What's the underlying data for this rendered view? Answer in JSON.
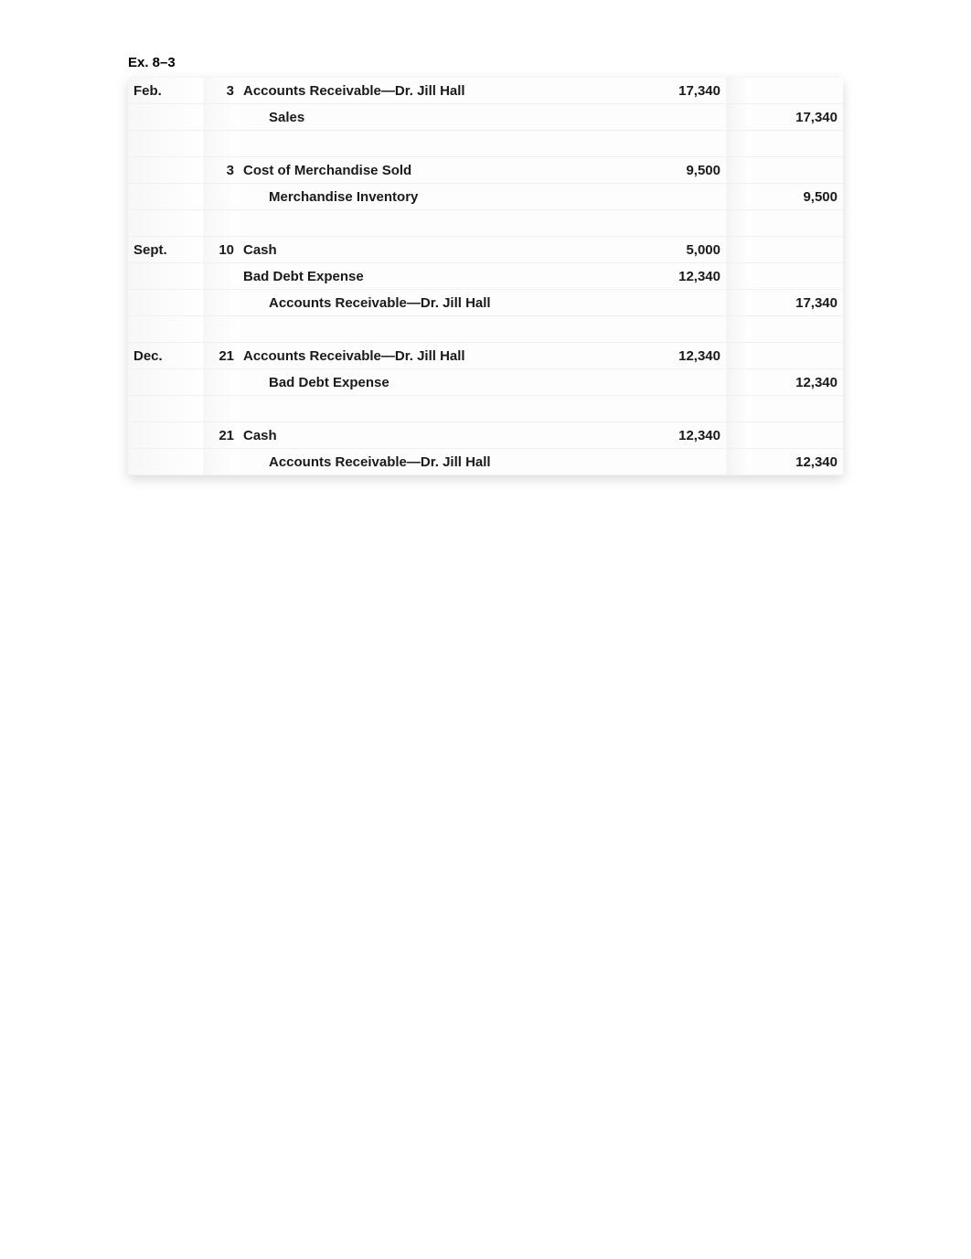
{
  "title": "Ex. 8–3",
  "rows": [
    {
      "month": "Feb.",
      "day": "3",
      "desc": "Accounts Receivable—Dr. Jill Hall",
      "indent": 0,
      "debit": "17,340",
      "credit": ""
    },
    {
      "month": "",
      "day": "",
      "desc": "Sales",
      "indent": 1,
      "debit": "",
      "credit": "17,340"
    },
    {
      "spacer": true
    },
    {
      "month": "",
      "day": "3",
      "desc": "Cost of Merchandise Sold",
      "indent": 0,
      "debit": "9,500",
      "credit": ""
    },
    {
      "month": "",
      "day": "",
      "desc": "Merchandise Inventory",
      "indent": 1,
      "debit": "",
      "credit": "9,500"
    },
    {
      "spacer": true
    },
    {
      "month": "Sept.",
      "day": "10",
      "desc": "Cash",
      "indent": 0,
      "debit": "5,000",
      "credit": ""
    },
    {
      "month": "",
      "day": "",
      "desc": "Bad Debt Expense",
      "indent": 0,
      "debit": "12,340",
      "credit": ""
    },
    {
      "month": "",
      "day": "",
      "desc": "Accounts Receivable—Dr. Jill Hall",
      "indent": 1,
      "debit": "",
      "credit": "17,340"
    },
    {
      "spacer": true
    },
    {
      "month": "Dec.",
      "day": "21",
      "desc": "Accounts Receivable—Dr. Jill Hall",
      "indent": 0,
      "debit": "12,340",
      "credit": ""
    },
    {
      "month": "",
      "day": "",
      "desc": "Bad Debt Expense",
      "indent": 1,
      "debit": "",
      "credit": "12,340"
    },
    {
      "spacer": true
    },
    {
      "month": "",
      "day": "21",
      "desc": "Cash",
      "indent": 0,
      "debit": "12,340",
      "credit": ""
    },
    {
      "month": "",
      "day": "",
      "desc": "Accounts Receivable—Dr. Jill Hall",
      "indent": 1,
      "debit": "",
      "credit": "12,340"
    }
  ]
}
